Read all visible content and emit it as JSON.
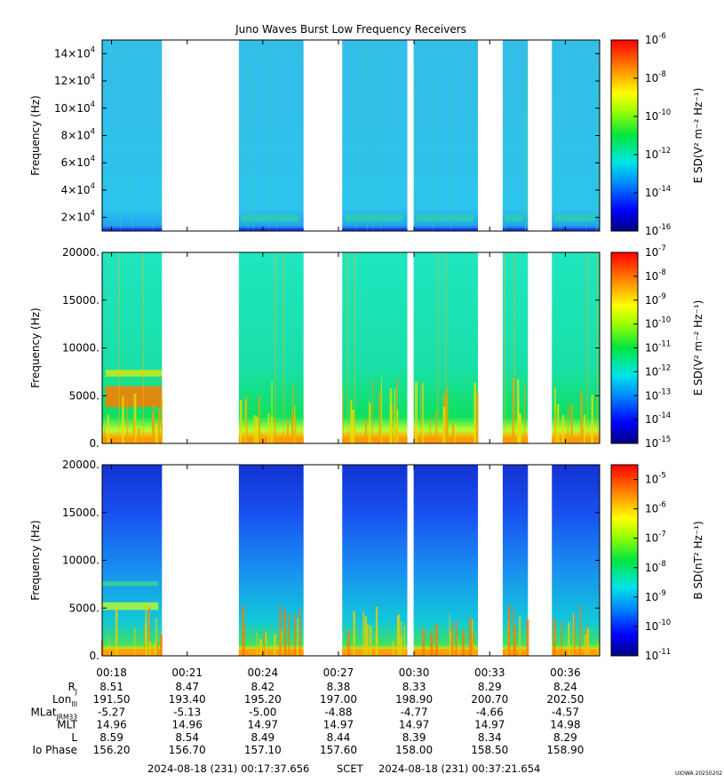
{
  "chart_data": {
    "type": "heatmap",
    "title": "Juno Waves Burst Low Frequency Receivers",
    "time_axis": {
      "ticks": [
        "00:18",
        "00:21",
        "00:24",
        "00:27",
        "00:30",
        "00:33",
        "00:36"
      ],
      "range": [
        "00:17:37.656",
        "00:37:21.654"
      ]
    },
    "bursts": [
      {
        "start": "00:17:37",
        "end": "00:20:00"
      },
      {
        "start": "00:23:03",
        "end": "00:25:37"
      },
      {
        "start": "00:27:09",
        "end": "00:29:44"
      },
      {
        "start": "00:29:59",
        "end": "00:32:32"
      },
      {
        "start": "00:33:31",
        "end": "00:34:31"
      },
      {
        "start": "00:35:28",
        "end": "00:37:21"
      }
    ],
    "panels": [
      {
        "name": "upper-panel",
        "ylabel": "Frequency (Hz)",
        "ylim": [
          10000,
          150000
        ],
        "yticks": [
          {
            "value": 20000,
            "mant": "2×10",
            "exp": "4"
          },
          {
            "value": 40000,
            "mant": "4×10",
            "exp": "4"
          },
          {
            "value": 60000,
            "mant": "6×10",
            "exp": "4"
          },
          {
            "value": 80000,
            "mant": "8×10",
            "exp": "4"
          },
          {
            "value": 100000,
            "mant": "10×10",
            "exp": "4"
          },
          {
            "value": 120000,
            "mant": "12×10",
            "exp": "4"
          },
          {
            "value": 140000,
            "mant": "14×10",
            "exp": "4"
          }
        ],
        "colorbar": {
          "label": "E SD(V² m⁻² Hz⁻¹)",
          "scale": "log",
          "range": [
            -16,
            -6
          ],
          "ticks": [
            -6,
            -8,
            -10,
            -12,
            -14,
            -16
          ]
        }
      },
      {
        "name": "middle-panel",
        "ylabel": "Frequency (Hz)",
        "ylim": [
          0,
          20000
        ],
        "yticks": [
          {
            "value": 0,
            "text": "0."
          },
          {
            "value": 5000,
            "text": "5000."
          },
          {
            "value": 10000,
            "text": "10000."
          },
          {
            "value": 15000,
            "text": "15000."
          },
          {
            "value": 20000,
            "text": "20000."
          }
        ],
        "colorbar": {
          "label": "E SD(V² m⁻² Hz⁻¹)",
          "scale": "log",
          "range": [
            -15,
            -7
          ],
          "ticks": [
            -7,
            -8,
            -9,
            -10,
            -11,
            -12,
            -13,
            -14,
            -15
          ]
        }
      },
      {
        "name": "lower-panel",
        "ylabel": "Frequency (Hz)",
        "ylim": [
          0,
          20000
        ],
        "yticks": [
          {
            "value": 0,
            "text": "0."
          },
          {
            "value": 5000,
            "text": "5000."
          },
          {
            "value": 10000,
            "text": "10000."
          },
          {
            "value": 15000,
            "text": "15000."
          },
          {
            "value": 20000,
            "text": "20000."
          }
        ],
        "colorbar": {
          "label": "B SD(nT² Hz⁻¹)",
          "scale": "log",
          "range": [
            -11,
            -4.5
          ],
          "ticks": [
            -5,
            -6,
            -7,
            -8,
            -9,
            -10,
            -11
          ]
        }
      }
    ],
    "ephemeris": [
      {
        "key": "rj",
        "label": "R",
        "sub": "J",
        "values": [
          "8.51",
          "8.47",
          "8.42",
          "8.38",
          "8.33",
          "8.29",
          "8.24"
        ]
      },
      {
        "key": "lon",
        "label": "Lon",
        "sub": "III",
        "values": [
          "191.50",
          "193.40",
          "195.20",
          "197.00",
          "198.90",
          "200.70",
          "202.50"
        ]
      },
      {
        "key": "mlat",
        "label": "MLat",
        "sub": "JRM33",
        "values": [
          "-5.27",
          "-5.13",
          "-5.00",
          "-4.88",
          "-4.77",
          "-4.66",
          "-4.57"
        ]
      },
      {
        "key": "mlt",
        "label": "MLT",
        "sub": "",
        "values": [
          "14.96",
          "14.96",
          "14.97",
          "14.97",
          "14.97",
          "14.97",
          "14.98"
        ]
      },
      {
        "key": "l",
        "label": "L",
        "sub": "",
        "values": [
          "8.59",
          "8.54",
          "8.49",
          "8.44",
          "8.39",
          "8.34",
          "8.29"
        ]
      },
      {
        "key": "io",
        "label": "Io Phase",
        "sub": "",
        "values": [
          "156.20",
          "156.70",
          "157.10",
          "157.60",
          "158.00",
          "158.50",
          "158.90"
        ]
      }
    ],
    "footer": {
      "start": "2024-08-18 (231) 00:17:37.656",
      "scet": "SCET",
      "end": "2024-08-18 (231) 00:37:21.654"
    },
    "credit": "UIOWA 20250202"
  }
}
